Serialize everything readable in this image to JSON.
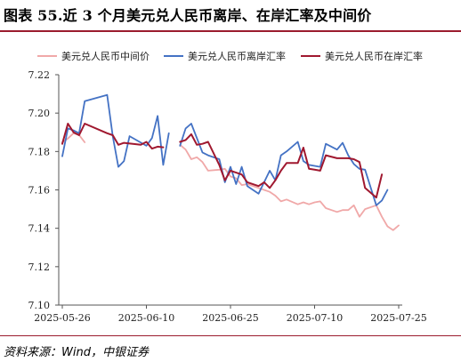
{
  "title": "图表 55.近 3 个月美元兑人民币离岸、在岸汇率及中间价",
  "source": "资料来源：Wind，中银证券",
  "colors": {
    "accent": "#9b1c2e"
  },
  "chart_data": {
    "type": "line",
    "title": "图表 55.近 3 个月美元兑人民币离岸、在岸汇率及中间价",
    "xlabel": "",
    "ylabel": "",
    "ylim": [
      7.1,
      7.22
    ],
    "yticks": [
      "7.22",
      "7.20",
      "7.18",
      "7.16",
      "7.14",
      "7.12",
      "7.10"
    ],
    "xticks": [
      "2025-05-26",
      "2025-06-10",
      "2025-06-25",
      "2025-07-10",
      "2025-07-25"
    ],
    "grid": false,
    "legend_position": "top",
    "series": [
      {
        "name": "美元兑人民币中间价",
        "color": "#f0a8a8",
        "points": [
          [
            "2025-05-26",
            7.1848
          ],
          [
            "2025-05-27",
            7.1868
          ],
          [
            "2025-05-28",
            7.1895
          ],
          [
            "2025-05-29",
            7.1886
          ],
          [
            "2025-05-30",
            7.1848
          ]
        ]
      },
      {
        "name": "美元兑人民币离岸汇率",
        "color": "#4472c4",
        "points": [
          [
            "2025-05-26",
            7.1775
          ],
          [
            "2025-05-27",
            7.192
          ],
          [
            "2025-05-28",
            7.191
          ],
          [
            "2025-05-29",
            7.1895
          ],
          [
            "2025-05-30",
            7.2062
          ],
          [
            "2025-06-03",
            7.2095
          ],
          [
            "2025-06-04",
            7.188
          ],
          [
            "2025-06-05",
            7.172
          ],
          [
            "2025-06-06",
            7.175
          ],
          [
            "2025-06-07",
            7.188
          ],
          [
            "2025-06-10",
            7.183
          ],
          [
            "2025-06-11",
            7.187
          ],
          [
            "2025-06-12",
            7.1985
          ],
          [
            "2025-06-13",
            7.173
          ],
          [
            "2025-06-14",
            7.1895
          ]
        ]
      },
      {
        "name": "美元兑人民币在岸汇率",
        "color": "#a0182f",
        "points": [
          [
            "2025-05-26",
            7.184
          ],
          [
            "2025-05-27",
            7.1945
          ],
          [
            "2025-05-28",
            7.19
          ],
          [
            "2025-05-29",
            7.1885
          ],
          [
            "2025-05-30",
            7.1945
          ],
          [
            "2025-06-03",
            7.1895
          ],
          [
            "2025-06-04",
            7.1885
          ],
          [
            "2025-06-05",
            7.1835
          ],
          [
            "2025-06-06",
            7.1845
          ],
          [
            "2025-06-09",
            7.1835
          ],
          [
            "2025-06-10",
            7.185
          ],
          [
            "2025-06-11",
            7.1815
          ],
          [
            "2025-06-12",
            7.1825
          ],
          [
            "2025-06-13",
            7.1822
          ]
        ]
      }
    ],
    "series_continued": [
      {
        "name": "美元兑人民币中间价",
        "points": [
          [
            "2025-06-16",
            7.1835
          ],
          [
            "2025-06-17",
            7.181
          ],
          [
            "2025-06-18",
            7.176
          ],
          [
            "2025-06-19",
            7.177
          ],
          [
            "2025-06-20",
            7.1745
          ],
          [
            "2025-06-21",
            7.17
          ],
          [
            "2025-06-23",
            7.1705
          ],
          [
            "2025-06-24",
            7.171
          ],
          [
            "2025-06-25",
            7.167
          ],
          [
            "2025-06-26",
            7.166
          ],
          [
            "2025-06-27",
            7.1625
          ],
          [
            "2025-06-28",
            7.163
          ],
          [
            "2025-06-30",
            7.161
          ],
          [
            "2025-07-01",
            7.16
          ],
          [
            "2025-07-02",
            7.159
          ],
          [
            "2025-07-03",
            7.157
          ],
          [
            "2025-07-04",
            7.154
          ],
          [
            "2025-07-05",
            7.155
          ],
          [
            "2025-07-07",
            7.1525
          ],
          [
            "2025-07-08",
            7.1535
          ],
          [
            "2025-07-09",
            7.1525
          ],
          [
            "2025-07-10",
            7.1535
          ],
          [
            "2025-07-11",
            7.154
          ],
          [
            "2025-07-12",
            7.1505
          ],
          [
            "2025-07-14",
            7.1485
          ],
          [
            "2025-07-15",
            7.1495
          ],
          [
            "2025-07-16",
            7.1495
          ],
          [
            "2025-07-17",
            7.152
          ],
          [
            "2025-07-18",
            7.146
          ],
          [
            "2025-07-19",
            7.15
          ],
          [
            "2025-07-21",
            7.152
          ],
          [
            "2025-07-22",
            7.146
          ],
          [
            "2025-07-23",
            7.141
          ],
          [
            "2025-07-24",
            7.139
          ],
          [
            "2025-07-25",
            7.1415
          ]
        ]
      },
      {
        "name": "美元兑人民币离岸汇率",
        "points": [
          [
            "2025-06-16",
            7.183
          ],
          [
            "2025-06-17",
            7.192
          ],
          [
            "2025-06-18",
            7.1945
          ],
          [
            "2025-06-19",
            7.187
          ],
          [
            "2025-06-20",
            7.1795
          ],
          [
            "2025-06-21",
            7.178
          ],
          [
            "2025-06-23",
            7.176
          ],
          [
            "2025-06-24",
            7.164
          ],
          [
            "2025-06-25",
            7.172
          ],
          [
            "2025-06-26",
            7.163
          ],
          [
            "2025-06-27",
            7.172
          ],
          [
            "2025-06-28",
            7.162
          ],
          [
            "2025-06-30",
            7.158
          ],
          [
            "2025-07-01",
            7.164
          ],
          [
            "2025-07-02",
            7.17
          ],
          [
            "2025-07-03",
            7.165
          ],
          [
            "2025-07-04",
            7.178
          ],
          [
            "2025-07-05",
            7.18
          ],
          [
            "2025-07-07",
            7.185
          ],
          [
            "2025-07-08",
            7.175
          ],
          [
            "2025-07-09",
            7.173
          ],
          [
            "2025-07-10",
            7.1725
          ],
          [
            "2025-07-11",
            7.172
          ],
          [
            "2025-07-12",
            7.184
          ],
          [
            "2025-07-14",
            7.181
          ],
          [
            "2025-07-15",
            7.1845
          ],
          [
            "2025-07-16",
            7.178
          ],
          [
            "2025-07-17",
            7.1735
          ],
          [
            "2025-07-18",
            7.171
          ],
          [
            "2025-07-19",
            7.1705
          ],
          [
            "2025-07-21",
            7.152
          ],
          [
            "2025-07-22",
            7.1545
          ],
          [
            "2025-07-23",
            7.16
          ]
        ]
      },
      {
        "name": "美元兑人民币在岸汇率",
        "points": [
          [
            "2025-06-16",
            7.185
          ],
          [
            "2025-06-17",
            7.186
          ],
          [
            "2025-06-18",
            7.189
          ],
          [
            "2025-06-19",
            7.1835
          ],
          [
            "2025-06-20",
            7.184
          ],
          [
            "2025-06-21",
            7.185
          ],
          [
            "2025-06-23",
            7.173
          ],
          [
            "2025-06-24",
            7.165
          ],
          [
            "2025-06-25",
            7.17
          ],
          [
            "2025-06-26",
            7.169
          ],
          [
            "2025-06-27",
            7.168
          ],
          [
            "2025-06-28",
            7.164
          ],
          [
            "2025-06-30",
            7.162
          ],
          [
            "2025-07-01",
            7.164
          ],
          [
            "2025-07-02",
            7.161
          ],
          [
            "2025-07-03",
            7.165
          ],
          [
            "2025-07-04",
            7.17
          ],
          [
            "2025-07-05",
            7.174
          ],
          [
            "2025-07-07",
            7.174
          ],
          [
            "2025-07-08",
            7.182
          ],
          [
            "2025-07-09",
            7.171
          ],
          [
            "2025-07-10",
            7.1705
          ],
          [
            "2025-07-11",
            7.17
          ],
          [
            "2025-07-12",
            7.178
          ],
          [
            "2025-07-14",
            7.1765
          ],
          [
            "2025-07-15",
            7.1765
          ],
          [
            "2025-07-16",
            7.1765
          ],
          [
            "2025-07-17",
            7.176
          ],
          [
            "2025-07-18",
            7.1745
          ],
          [
            "2025-07-19",
            7.161
          ],
          [
            "2025-07-21",
            7.156
          ],
          [
            "2025-07-22",
            7.168
          ]
        ]
      }
    ]
  }
}
